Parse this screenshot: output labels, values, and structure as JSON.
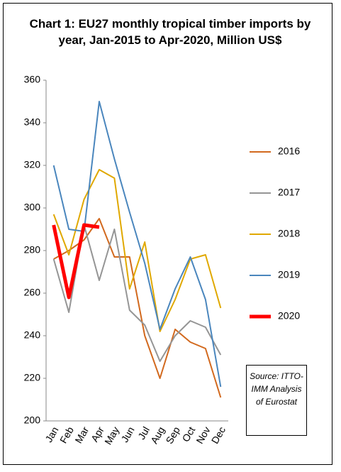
{
  "chart_data": {
    "type": "line",
    "title": "Chart 1: EU27 monthly tropical timber imports by year, Jan-2015 to Apr-2020, Million US$",
    "annotation": "Source: ITTO-IMM Analysis of Eurostat",
    "categories": [
      "Jan",
      "Feb",
      "Mar",
      "Apr",
      "May",
      "Jun",
      "Jul",
      "Aug",
      "Sep",
      "Oct",
      "Nov",
      "Dec"
    ],
    "ylim": [
      200,
      360
    ],
    "yticks": [
      200,
      220,
      240,
      260,
      280,
      300,
      320,
      340,
      360
    ],
    "grid": false,
    "legend": "right",
    "series": [
      {
        "name": "2016",
        "color": "#d2691e",
        "width": 2,
        "values": [
          276,
          280,
          285,
          295,
          277,
          277,
          240,
          220,
          243,
          237,
          234,
          211
        ]
      },
      {
        "name": "2017",
        "color": "#959595",
        "width": 2,
        "values": [
          276,
          251,
          292,
          266,
          290,
          252,
          245,
          228,
          240,
          247,
          244,
          231
        ]
      },
      {
        "name": "2018",
        "color": "#e0a800",
        "width": 2,
        "values": [
          297,
          278,
          304,
          318,
          314,
          262,
          284,
          242,
          257,
          276,
          278,
          253
        ]
      },
      {
        "name": "2019",
        "color": "#4a86bd",
        "width": 2,
        "values": [
          320,
          290,
          289,
          350,
          323,
          298,
          274,
          243,
          262,
          277,
          257,
          216
        ]
      },
      {
        "name": "2020",
        "color": "#ff0000",
        "width": 5,
        "values": [
          292,
          258,
          292,
          291,
          null,
          null,
          null,
          null,
          null,
          null,
          null,
          null
        ]
      }
    ]
  }
}
